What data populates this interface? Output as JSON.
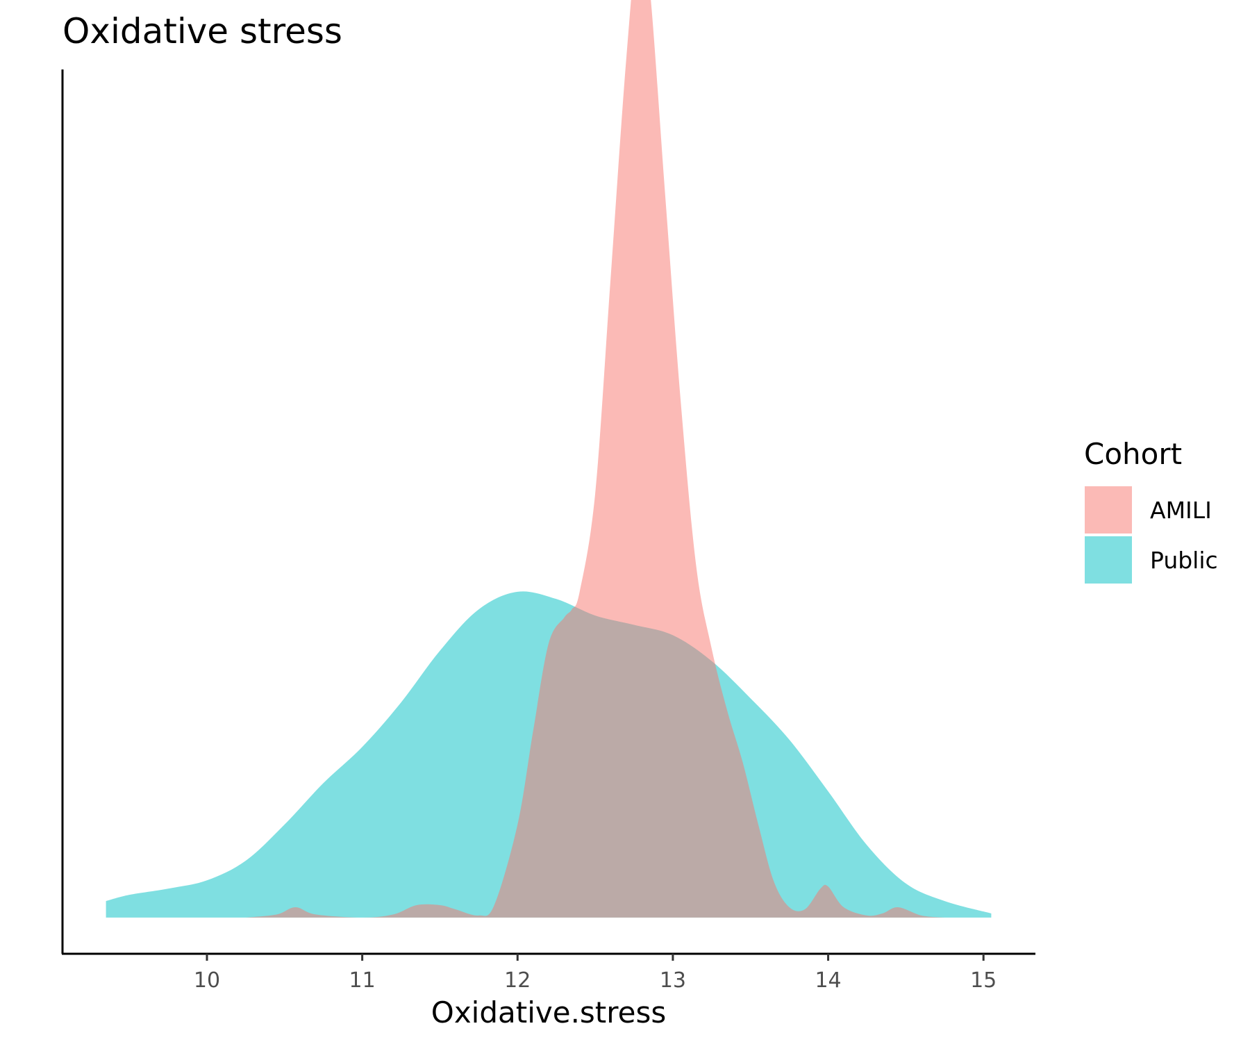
{
  "chart_data": {
    "type": "area",
    "title": "Oxidative stress",
    "xlabel": "Oxidative.stress",
    "ylabel": "",
    "xlim": [
      9.07,
      15.33
    ],
    "ylim": [
      -0.035,
      0.82
    ],
    "x_ticks": [
      10,
      11,
      12,
      13,
      14,
      15
    ],
    "x_tick_labels": [
      "10",
      "11",
      "12",
      "13",
      "14",
      "15"
    ],
    "y_ticks_shown": false,
    "grid": false,
    "legend": {
      "title": "Cohort",
      "placement": "right",
      "entries": [
        "AMILI",
        "Public"
      ]
    },
    "series": [
      {
        "name": "Public",
        "color": "#00BFC4",
        "opacity": 0.5,
        "x": [
          9.35,
          9.5,
          9.75,
          10.0,
          10.25,
          10.5,
          10.75,
          11.0,
          11.25,
          11.5,
          11.75,
          12.0,
          12.25,
          12.5,
          12.75,
          13.0,
          13.25,
          13.5,
          13.75,
          14.0,
          14.25,
          14.5,
          14.75,
          15.05
        ],
        "density": [
          0.016,
          0.022,
          0.028,
          0.036,
          0.055,
          0.09,
          0.13,
          0.165,
          0.208,
          0.258,
          0.298,
          0.315,
          0.308,
          0.292,
          0.283,
          0.273,
          0.248,
          0.212,
          0.172,
          0.122,
          0.07,
          0.033,
          0.016,
          0.004
        ]
      },
      {
        "name": "AMILI",
        "color": "#F8766D",
        "opacity": 0.5,
        "x": [
          10.25,
          10.45,
          10.57,
          10.7,
          11.0,
          11.2,
          11.35,
          11.5,
          11.6,
          11.75,
          11.85,
          12.0,
          12.1,
          12.2,
          12.3,
          12.35,
          12.4,
          12.5,
          12.6,
          12.7,
          12.78,
          12.85,
          12.95,
          13.05,
          13.15,
          13.25,
          13.35,
          13.45,
          13.55,
          13.65,
          13.75,
          13.85,
          13.95,
          14.0,
          14.1,
          14.25,
          14.35,
          14.45,
          14.6,
          14.75
        ],
        "density": [
          0.0,
          0.003,
          0.01,
          0.003,
          0.0,
          0.003,
          0.012,
          0.012,
          0.008,
          0.002,
          0.012,
          0.09,
          0.18,
          0.265,
          0.29,
          0.298,
          0.315,
          0.41,
          0.62,
          0.83,
          0.95,
          0.9,
          0.7,
          0.5,
          0.34,
          0.26,
          0.2,
          0.15,
          0.09,
          0.035,
          0.01,
          0.008,
          0.028,
          0.03,
          0.01,
          0.002,
          0.004,
          0.01,
          0.002,
          0.0
        ]
      }
    ]
  }
}
